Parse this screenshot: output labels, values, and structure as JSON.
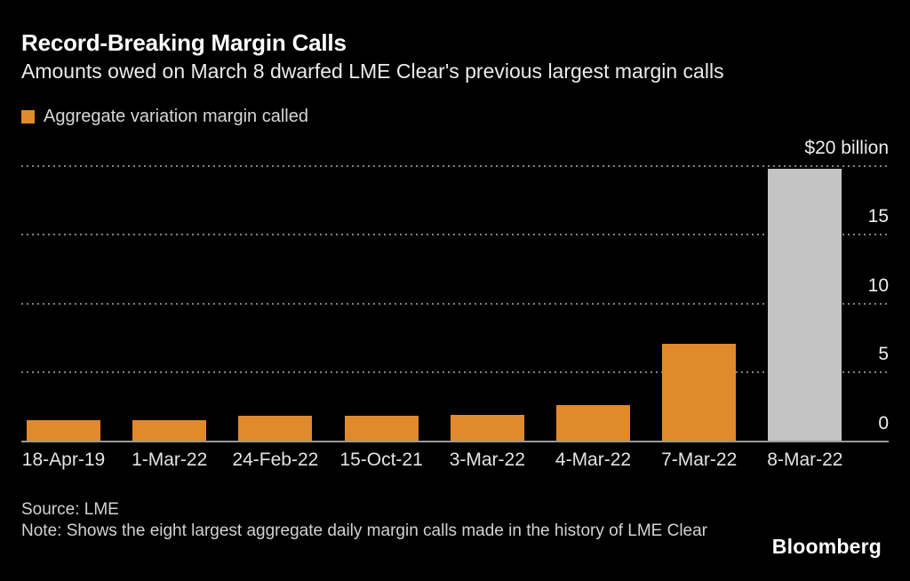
{
  "chart_data": {
    "type": "bar",
    "title": "Record-Breaking Margin Calls",
    "subtitle": "Amounts owed on March 8 dwarfed LME Clear's previous largest margin calls",
    "legend": {
      "label": "Aggregate variation margin called",
      "color": "#E0892D"
    },
    "categories": [
      "18-Apr-19",
      "1-Mar-22",
      "24-Feb-22",
      "15-Oct-21",
      "3-Mar-22",
      "4-Mar-22",
      "7-Mar-22",
      "8-Mar-22"
    ],
    "values": [
      1.5,
      1.5,
      1.8,
      1.8,
      1.9,
      2.6,
      7.0,
      19.7
    ],
    "bar_colors": [
      "#E0892D",
      "#E0892D",
      "#E0892D",
      "#E0892D",
      "#E0892D",
      "#E0892D",
      "#E0892D",
      "#C4C4C4"
    ],
    "highlight_category": "8-Mar-22",
    "unit": "billions of US dollars",
    "xlabel": "",
    "ylabel": "",
    "ylim": [
      0,
      20
    ],
    "yticks": [
      {
        "value": 0,
        "label": "0"
      },
      {
        "value": 5,
        "label": "5"
      },
      {
        "value": 10,
        "label": "10"
      },
      {
        "value": 15,
        "label": "15"
      },
      {
        "value": 20,
        "label": "$20 billion"
      }
    ],
    "grid": "horizontal-dotted",
    "legend_position": "top-left",
    "value_axis_side": "right"
  },
  "footer": {
    "source": "Source: LME",
    "note": "Note: Shows the eight largest aggregate daily margin calls made in the history of LME Clear",
    "brand": "Bloomberg"
  },
  "colors": {
    "background": "#000000",
    "bar_orange": "#E0892D",
    "bar_gray_highlight": "#C4C4C4",
    "gridline": "#828282",
    "axis_line": "#9a9a9a",
    "title_text": "#FFFFFF",
    "tick_text": "#EDEDED",
    "footer_text": "#D2D2D2"
  }
}
